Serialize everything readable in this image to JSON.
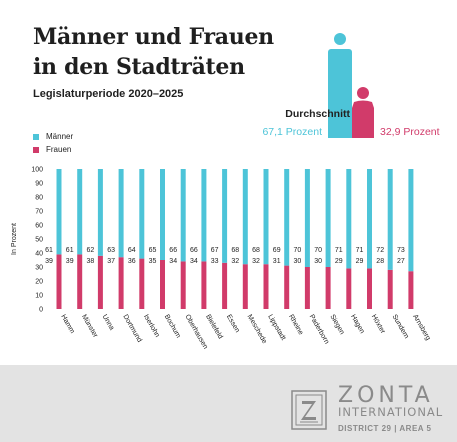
{
  "header": {
    "title_line1": "Männer und Frauen",
    "title_line2": "in den Stadträten",
    "subtitle": "Legislaturperiode 2020–2025"
  },
  "average": {
    "label": "Durchschnitt",
    "men_text": "67,1 Prozent",
    "women_text": "32,9 Prozent",
    "men_color": "#4dc4d8",
    "women_color": "#d13b6a",
    "men_icon": "man-silhouette-icon",
    "women_icon": "woman-silhouette-icon"
  },
  "footer": {
    "org_name": "ZONTA",
    "org_sub": "INTERNATIONAL",
    "district": "DISTRICT 29 | AREA 5",
    "logo_icon": "zonta-logo-icon"
  },
  "chart_data": {
    "type": "bar",
    "stacked": true,
    "categories": [
      "Hamm",
      "Münster",
      "Unna",
      "Dortmund",
      "Iserlohn",
      "Bochum",
      "Oberhausen",
      "Bielefeld",
      "Essen",
      "Meschede",
      "Lippstadt",
      "Rheine",
      "Paderborn",
      "Siegen",
      "Hagen",
      "Höxter",
      "Sundern",
      "Arnsberg"
    ],
    "series": [
      {
        "name": "Männer",
        "color": "#4dc4d8",
        "values": [
          61,
          61,
          62,
          63,
          64,
          65,
          66,
          66,
          67,
          68,
          68,
          69,
          70,
          70,
          71,
          71,
          72,
          73
        ]
      },
      {
        "name": "Frauen",
        "color": "#d13b6a",
        "values": [
          39,
          39,
          38,
          37,
          36,
          35,
          34,
          34,
          33,
          32,
          32,
          31,
          30,
          30,
          29,
          29,
          28,
          27
        ]
      }
    ],
    "ylabel": "In Prozent",
    "ylim": [
      0,
      100
    ],
    "yticks": [
      0,
      10,
      20,
      30,
      40,
      50,
      60,
      70,
      80,
      90,
      100
    ],
    "grid": false,
    "legend": "top-left"
  }
}
